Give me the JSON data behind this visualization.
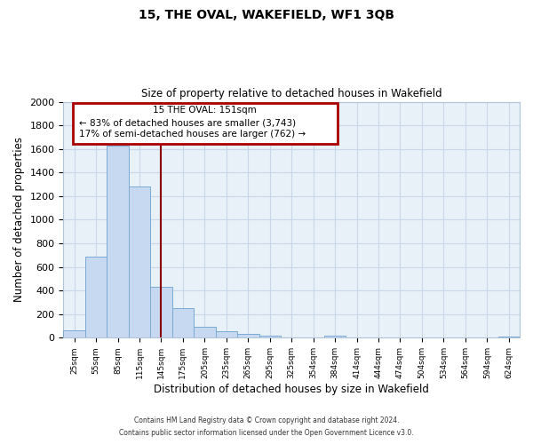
{
  "title": "15, THE OVAL, WAKEFIELD, WF1 3QB",
  "subtitle": "Size of property relative to detached houses in Wakefield",
  "xlabel": "Distribution of detached houses by size in Wakefield",
  "ylabel": "Number of detached properties",
  "bin_labels": [
    "25sqm",
    "55sqm",
    "85sqm",
    "115sqm",
    "145sqm",
    "175sqm",
    "205sqm",
    "235sqm",
    "265sqm",
    "295sqm",
    "325sqm",
    "354sqm",
    "384sqm",
    "414sqm",
    "444sqm",
    "474sqm",
    "504sqm",
    "534sqm",
    "564sqm",
    "594sqm",
    "624sqm"
  ],
  "bar_heights": [
    65,
    690,
    1625,
    1285,
    435,
    250,
    90,
    52,
    30,
    20,
    0,
    0,
    15,
    0,
    0,
    0,
    0,
    0,
    0,
    0,
    10
  ],
  "bar_color": "#c6d9f0",
  "bar_edge_color": "#7aaad4",
  "ylim": [
    0,
    2000
  ],
  "yticks": [
    0,
    200,
    400,
    600,
    800,
    1000,
    1200,
    1400,
    1600,
    1800,
    2000
  ],
  "property_line_color": "#8b0000",
  "annotation_box_text_line1": "15 THE OVAL: 151sqm",
  "annotation_box_text_line2": "← 83% of detached houses are smaller (3,743)",
  "annotation_box_text_line3": "17% of semi-detached houses are larger (762) →",
  "annotation_box_color": "#aa0000",
  "footer_line1": "Contains HM Land Registry data © Crown copyright and database right 2024.",
  "footer_line2": "Contains public sector information licensed under the Open Government Licence v3.0.",
  "background_color": "#ffffff",
  "plot_bg_color": "#e8f0f8",
  "grid_color": "#c8d8e8",
  "num_bins": 21,
  "bin_width": 30
}
